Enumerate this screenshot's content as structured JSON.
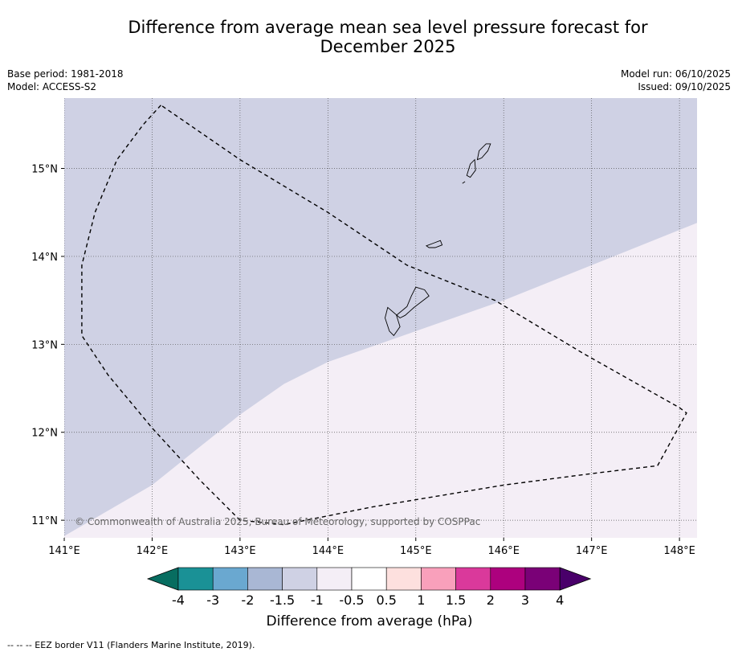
{
  "header": {
    "title_line1": "Difference from average mean sea level pressure forecast for",
    "title_line2": "December 2025",
    "base_period": "Base period: 1981-2018",
    "model": "Model: ACCESS-S2",
    "model_run": "Model run: 06/10/2025",
    "issued": "Issued: 09/10/2025"
  },
  "map": {
    "lon_range": [
      141.0,
      148.2
    ],
    "lat_range": [
      10.8,
      15.8
    ],
    "lon_ticks": [
      141,
      142,
      143,
      144,
      145,
      146,
      147,
      148
    ],
    "lon_tick_labels": [
      "141°E",
      "142°E",
      "143°E",
      "144°E",
      "145°E",
      "146°E",
      "147°E",
      "148°E"
    ],
    "lat_ticks": [
      11,
      12,
      13,
      14,
      15
    ],
    "lat_tick_labels": [
      "11°N",
      "12°N",
      "13°N",
      "14°N",
      "15°N"
    ],
    "copyright": "© Commonwealth of Australia 2025, Bureau of Meteorology, supported by COSPPac",
    "colors": {
      "neg_1_5_to_neg_1": "#cfd1e4",
      "neg_1_to_neg_0_5": "#f4eef6",
      "gridline": "#555555",
      "eez": "#000000",
      "coast": "#000000"
    },
    "eez_border": [
      [
        142.1,
        15.72
      ],
      [
        141.9,
        15.5
      ],
      [
        141.6,
        15.1
      ],
      [
        141.35,
        14.5
      ],
      [
        141.2,
        13.9
      ],
      [
        141.2,
        13.1
      ],
      [
        141.5,
        12.65
      ],
      [
        142.0,
        12.05
      ],
      [
        142.55,
        11.45
      ],
      [
        143.0,
        11.0
      ],
      [
        143.5,
        10.95
      ],
      [
        144.5,
        11.15
      ],
      [
        146.0,
        11.4
      ],
      [
        147.0,
        11.53
      ],
      [
        147.75,
        11.62
      ],
      [
        148.08,
        12.22
      ],
      [
        148.0,
        12.28
      ],
      [
        146.9,
        12.9
      ],
      [
        145.9,
        13.5
      ],
      [
        145.15,
        13.8
      ],
      [
        144.9,
        13.9
      ],
      [
        144.0,
        14.5
      ],
      [
        143.0,
        15.1
      ],
      [
        142.1,
        15.72
      ]
    ],
    "boundary_line": [
      [
        141.0,
        10.82
      ],
      [
        142.0,
        11.4
      ],
      [
        143.0,
        12.2
      ],
      [
        143.5,
        12.55
      ],
      [
        144.0,
        12.8
      ],
      [
        145.0,
        13.15
      ],
      [
        146.0,
        13.5
      ],
      [
        147.0,
        13.9
      ],
      [
        148.2,
        14.38
      ]
    ],
    "islands": [
      {
        "name": "Guam",
        "coords": [
          [
            144.75,
            13.1
          ],
          [
            144.82,
            13.2
          ],
          [
            144.78,
            13.33
          ],
          [
            144.9,
            13.43
          ],
          [
            144.95,
            13.55
          ],
          [
            145.0,
            13.65
          ],
          [
            145.1,
            13.62
          ],
          [
            145.15,
            13.55
          ],
          [
            144.98,
            13.42
          ],
          [
            144.88,
            13.33
          ],
          [
            144.82,
            13.3
          ],
          [
            144.68,
            13.42
          ],
          [
            144.65,
            13.3
          ],
          [
            144.7,
            13.15
          ],
          [
            144.75,
            13.1
          ]
        ]
      },
      {
        "name": "Rota",
        "coords": [
          [
            145.12,
            14.12
          ],
          [
            145.2,
            14.15
          ],
          [
            145.28,
            14.18
          ],
          [
            145.3,
            14.13
          ],
          [
            145.22,
            14.1
          ],
          [
            145.15,
            14.1
          ],
          [
            145.12,
            14.12
          ]
        ]
      },
      {
        "name": "Tinian",
        "coords": [
          [
            145.58,
            14.92
          ],
          [
            145.62,
            15.05
          ],
          [
            145.67,
            15.1
          ],
          [
            145.68,
            14.98
          ],
          [
            145.62,
            14.9
          ],
          [
            145.58,
            14.92
          ]
        ]
      },
      {
        "name": "Saipan",
        "coords": [
          [
            145.7,
            15.1
          ],
          [
            145.72,
            15.2
          ],
          [
            145.8,
            15.28
          ],
          [
            145.85,
            15.28
          ],
          [
            145.82,
            15.2
          ],
          [
            145.75,
            15.12
          ],
          [
            145.7,
            15.1
          ]
        ]
      },
      {
        "name": "Aguijan",
        "coords": [
          [
            145.53,
            14.83
          ],
          [
            145.56,
            14.85
          ]
        ]
      }
    ]
  },
  "colorbar": {
    "title": "Difference from average (hPa)",
    "labels": [
      "-4",
      "-3",
      "-2",
      "-1.5",
      "-1",
      "-0.5",
      "0.5",
      "1",
      "1.5",
      "2",
      "3",
      "4"
    ],
    "colors": [
      "#1a9196",
      "#6aa8d0",
      "#a9b7d4",
      "#cfd1e4",
      "#f4eef6",
      "#ffffff",
      "#fde0de",
      "#f9a0bb",
      "#da399b",
      "#ad017e",
      "#7a0177"
    ],
    "under_color": "#076d60",
    "over_color": "#49006a"
  },
  "footnote": "--  --  -- EEZ border V11 (Flanders Marine Institute, 2019)."
}
